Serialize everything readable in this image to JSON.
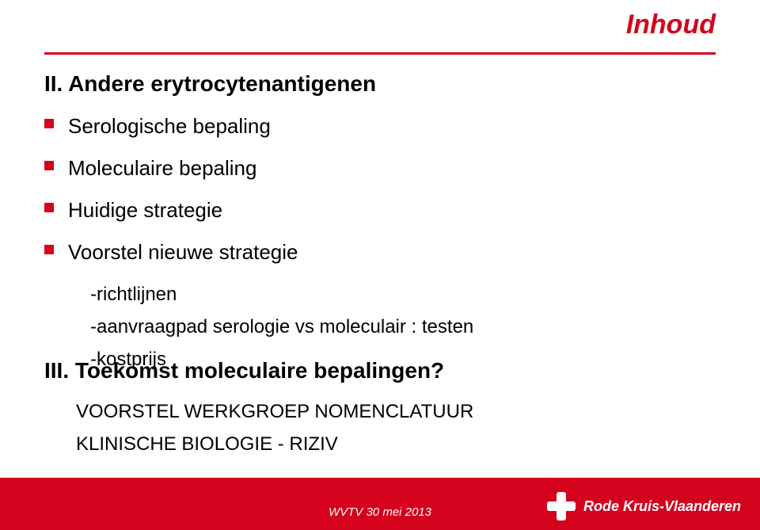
{
  "colors": {
    "accent": "#d4021d",
    "rule": "#d4021d",
    "text": "#000000",
    "footer_bg": "#d4021d",
    "footer_text": "#ffffff"
  },
  "typography": {
    "heading_fontsize": 34,
    "section_fontsize": 28,
    "body_fontsize": 26,
    "sub_fontsize": 24,
    "uppercase_fontsize": 24,
    "logo_fontsize": 18
  },
  "heading_right": "Inhoud",
  "section_ii": "II. Andere erytrocytenantigenen",
  "bullets": [
    "Serologische bepaling",
    "Moleculaire bepaling",
    "Huidige strategie",
    "Voorstel nieuwe strategie"
  ],
  "sub_bullets": [
    "-richtlijnen",
    "-aanvraagpad serologie vs moleculair : testen",
    "-kostprijs"
  ],
  "section_iii": "III. Toekomst moleculaire bepalingen?",
  "uppercase_lines": [
    "VOORSTEL WERKGROEP NOMENCLATUUR",
    "KLINISCHE BIOLOGIE - RIZIV"
  ],
  "footer": "WVTV  30 mei 2013",
  "logo_text": "Rode Kruis-Vlaanderen"
}
